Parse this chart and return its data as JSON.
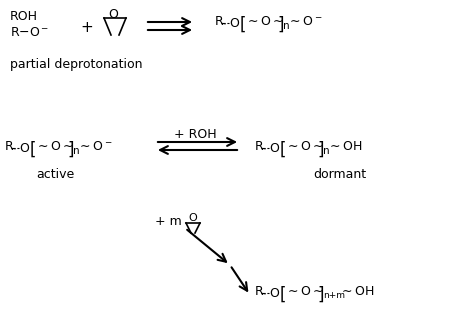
{
  "bg_color": "#ffffff",
  "text_color": "#000000",
  "figsize": [
    4.74,
    3.34
  ],
  "dpi": 100,
  "sections": {
    "top_left_line1": "ROH",
    "top_left_line2": "R–O⁻",
    "plus1": "+",
    "partial_deprotonation": "partial deprotonation",
    "plus_ROH": "+ ROH",
    "active": "active",
    "dormant": "dormant",
    "plus_m": "+ m"
  },
  "font_sizes": {
    "main": 9,
    "label": 9,
    "small": 7.5
  }
}
